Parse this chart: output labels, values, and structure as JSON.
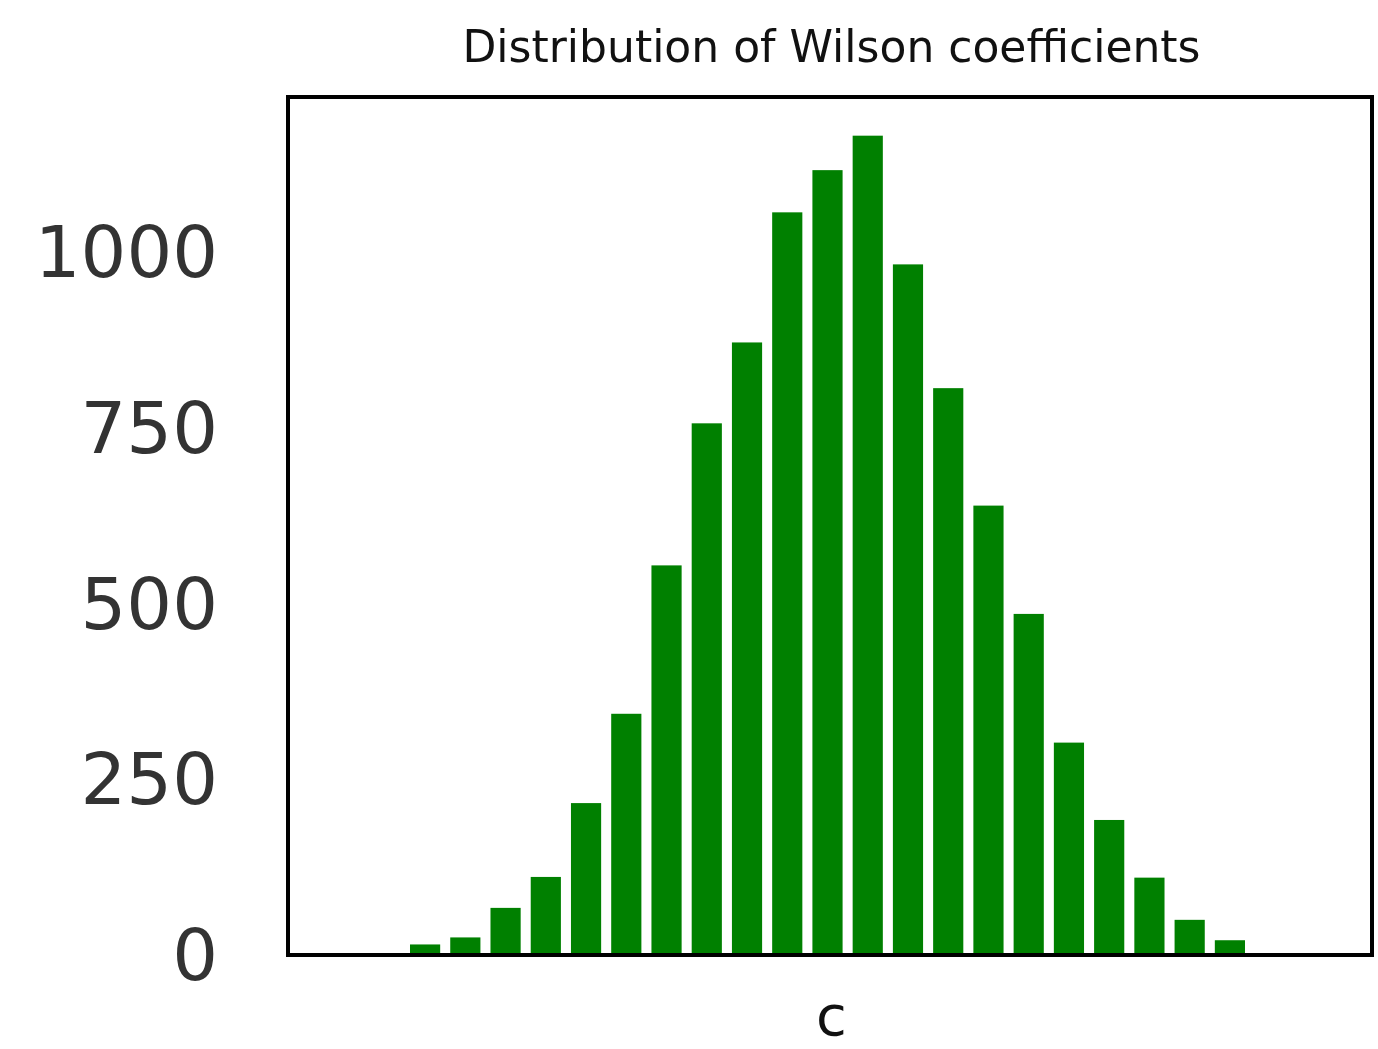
{
  "chart_data": {
    "type": "bar",
    "title": "Distribution of Wilson coefficients",
    "xlabel": "c",
    "categories": [
      null,
      null,
      null,
      null,
      null,
      null,
      null,
      null,
      null,
      null,
      null,
      null,
      null,
      null,
      null,
      null,
      null,
      null,
      null,
      null,
      null
    ],
    "values": [
      15,
      25,
      67,
      111,
      216,
      343,
      554,
      756,
      871,
      1056,
      1116,
      1165,
      982,
      806,
      639,
      485,
      302,
      192,
      110,
      50,
      21
    ],
    "color": "#008000",
    "ylim": [
      0,
      1220
    ],
    "yticks": [
      0,
      250,
      500,
      750,
      1000
    ],
    "grid": false
  }
}
